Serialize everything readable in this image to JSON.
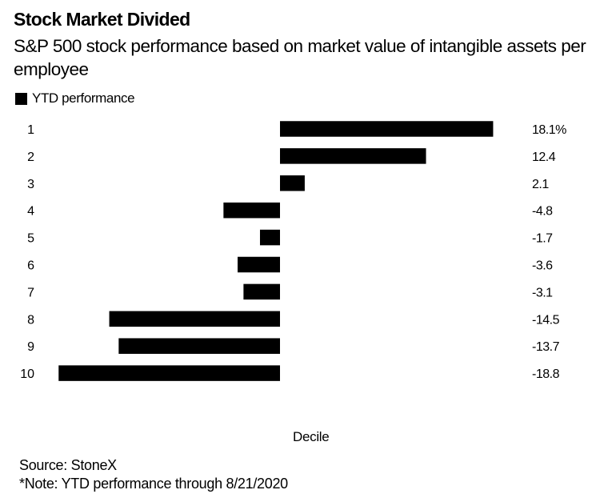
{
  "chart_data": {
    "type": "bar",
    "orientation": "horizontal",
    "title": "Stock Market Divided",
    "subtitle": "S&P 500 stock performance based on market value of intangible assets per employee",
    "legend": [
      {
        "label": "YTD performance",
        "color": "#000000"
      }
    ],
    "legend_position": "top-left",
    "categories": [
      "1",
      "2",
      "3",
      "4",
      "5",
      "6",
      "7",
      "8",
      "9",
      "10"
    ],
    "series": [
      {
        "name": "YTD performance",
        "values": [
          18.1,
          12.4,
          2.1,
          -4.8,
          -1.7,
          -3.6,
          -3.1,
          -14.5,
          -13.7,
          -18.8
        ]
      }
    ],
    "value_labels": [
      "18.1%",
      "12.4",
      "2.1",
      "-4.8",
      "-1.7",
      "-3.6",
      "-3.1",
      "-14.5",
      "-13.7",
      "-18.8"
    ],
    "xlabel": "",
    "ylabel": "Decile",
    "xlim": [
      -18.8,
      18.1
    ],
    "grid": false,
    "bar_color": "#000000"
  },
  "source": "Source: StoneX",
  "note": "*Note: YTD performance through 8/21/2020"
}
